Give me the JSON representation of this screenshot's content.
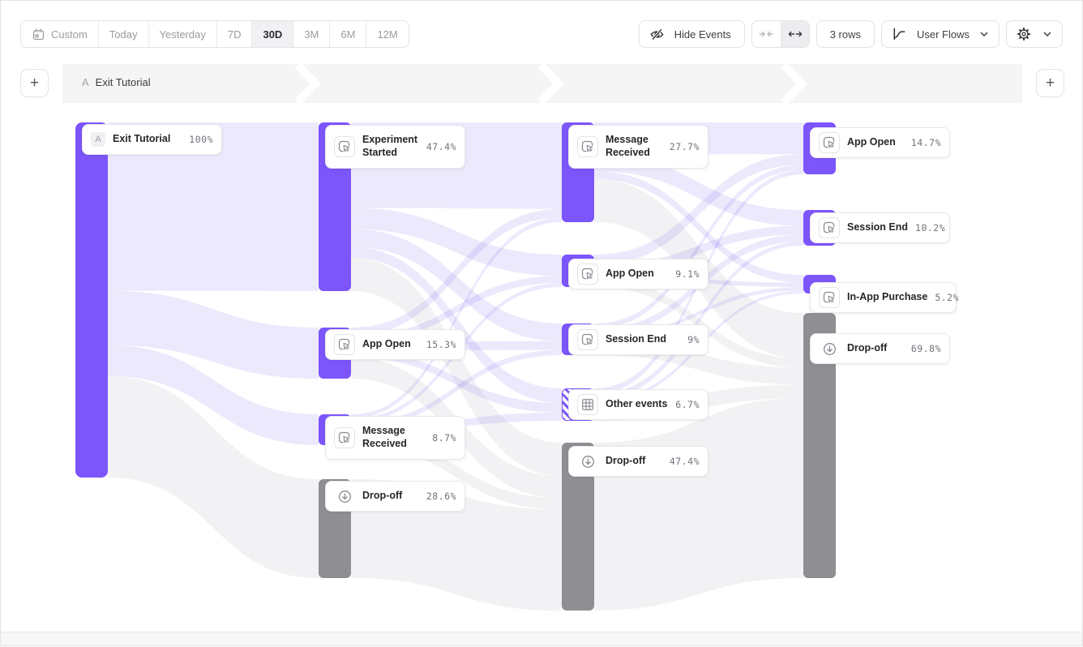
{
  "toolbar": {
    "date_ranges": [
      {
        "label": "Custom",
        "icon": "calendar-icon",
        "active": false
      },
      {
        "label": "Today",
        "active": false
      },
      {
        "label": "Yesterday",
        "active": false
      },
      {
        "label": "7D",
        "active": false
      },
      {
        "label": "30D",
        "active": true
      },
      {
        "label": "3M",
        "active": false
      },
      {
        "label": "6M",
        "active": false
      },
      {
        "label": "12M",
        "active": false
      }
    ],
    "hide_events_label": "Hide Events",
    "rows_label": "3 rows",
    "view_selector_label": "User Flows"
  },
  "flow_header": {
    "step_letter": "A",
    "step_label": "Exit Tutorial"
  },
  "colors": {
    "event_bar": "#7C55FB",
    "dropoff_bar": "#8E8E93",
    "flow": "#ECE9FC",
    "flow_dropoff": "#F2F2F5"
  },
  "chart_data": {
    "type": "sankey",
    "unit": "percent of users",
    "link_values_estimated": true,
    "columns": [
      {
        "step": 1,
        "nodes": [
          {
            "id": "exit-tutorial",
            "label": "Exit Tutorial",
            "pct": "100%",
            "value": 100,
            "kind": "start",
            "badge": "A"
          }
        ]
      },
      {
        "step": 2,
        "nodes": [
          {
            "id": "experiment-started",
            "label": "Experiment Started",
            "pct": "47.4%",
            "value": 47.4,
            "kind": "event"
          },
          {
            "id": "app-open-2",
            "label": "App Open",
            "pct": "15.3%",
            "value": 15.3,
            "kind": "event"
          },
          {
            "id": "message-received-2",
            "label": "Message Received",
            "pct": "8.7%",
            "value": 8.7,
            "kind": "event"
          },
          {
            "id": "drop-off-2",
            "label": "Drop-off",
            "pct": "28.6%",
            "value": 28.6,
            "kind": "dropoff"
          }
        ]
      },
      {
        "step": 3,
        "nodes": [
          {
            "id": "message-received-3",
            "label": "Message Received",
            "pct": "27.7%",
            "value": 27.7,
            "kind": "event"
          },
          {
            "id": "app-open-3",
            "label": "App Open",
            "pct": "9.1%",
            "value": 9.1,
            "kind": "event"
          },
          {
            "id": "session-end-3",
            "label": "Session End",
            "pct": "9%",
            "value": 9,
            "kind": "event"
          },
          {
            "id": "other-events",
            "label": "Other events",
            "pct": "6.7%",
            "value": 6.7,
            "kind": "other"
          },
          {
            "id": "drop-off-3",
            "label": "Drop-off",
            "pct": "47.4%",
            "value": 47.4,
            "kind": "dropoff"
          }
        ]
      },
      {
        "step": 4,
        "nodes": [
          {
            "id": "app-open-4",
            "label": "App Open",
            "pct": "14.7%",
            "value": 14.7,
            "kind": "event"
          },
          {
            "id": "session-end-4",
            "label": "Session End",
            "pct": "10.2%",
            "value": 10.2,
            "kind": "event"
          },
          {
            "id": "in-app-purchase",
            "label": "In-App Purchase",
            "pct": "5.2%",
            "value": 5.2,
            "kind": "event"
          },
          {
            "id": "drop-off-4",
            "label": "Drop-off",
            "pct": "69.8%",
            "value": 69.8,
            "kind": "dropoff"
          }
        ]
      }
    ],
    "links": [
      {
        "source": "exit-tutorial",
        "target": "experiment-started",
        "value": 47.4
      },
      {
        "source": "exit-tutorial",
        "target": "app-open-2",
        "value": 15.3
      },
      {
        "source": "exit-tutorial",
        "target": "message-received-2",
        "value": 8.7
      },
      {
        "source": "exit-tutorial",
        "target": "drop-off-2",
        "value": 28.6
      },
      {
        "source": "experiment-started",
        "target": "message-received-3",
        "value": 24.0
      },
      {
        "source": "experiment-started",
        "target": "app-open-3",
        "value": 6.0
      },
      {
        "source": "experiment-started",
        "target": "session-end-3",
        "value": 5.0
      },
      {
        "source": "experiment-started",
        "target": "other-events",
        "value": 3.0
      },
      {
        "source": "experiment-started",
        "target": "drop-off-3",
        "value": 9.4
      },
      {
        "source": "app-open-2",
        "target": "message-received-3",
        "value": 2.5
      },
      {
        "source": "app-open-2",
        "target": "app-open-3",
        "value": 2.0
      },
      {
        "source": "app-open-2",
        "target": "session-end-3",
        "value": 2.5
      },
      {
        "source": "app-open-2",
        "target": "other-events",
        "value": 2.0
      },
      {
        "source": "app-open-2",
        "target": "drop-off-3",
        "value": 6.3
      },
      {
        "source": "message-received-2",
        "target": "message-received-3",
        "value": 1.2
      },
      {
        "source": "message-received-2",
        "target": "app-open-3",
        "value": 1.1
      },
      {
        "source": "message-received-2",
        "target": "session-end-3",
        "value": 1.5
      },
      {
        "source": "message-received-2",
        "target": "other-events",
        "value": 1.7
      },
      {
        "source": "message-received-2",
        "target": "drop-off-3",
        "value": 3.2
      },
      {
        "source": "drop-off-2",
        "target": "drop-off-3",
        "value": 28.6
      },
      {
        "source": "message-received-3",
        "target": "app-open-4",
        "value": 9.0
      },
      {
        "source": "message-received-3",
        "target": "session-end-4",
        "value": 4.5
      },
      {
        "source": "message-received-3",
        "target": "in-app-purchase",
        "value": 2.2
      },
      {
        "source": "message-received-3",
        "target": "drop-off-4",
        "value": 12.0
      },
      {
        "source": "app-open-3",
        "target": "app-open-4",
        "value": 3.0
      },
      {
        "source": "app-open-3",
        "target": "session-end-4",
        "value": 2.5
      },
      {
        "source": "app-open-3",
        "target": "in-app-purchase",
        "value": 1.2
      },
      {
        "source": "app-open-3",
        "target": "drop-off-4",
        "value": 2.4
      },
      {
        "source": "session-end-3",
        "target": "app-open-4",
        "value": 1.5
      },
      {
        "source": "session-end-3",
        "target": "session-end-4",
        "value": 2.0
      },
      {
        "source": "session-end-3",
        "target": "in-app-purchase",
        "value": 1.0
      },
      {
        "source": "session-end-3",
        "target": "drop-off-4",
        "value": 4.5
      },
      {
        "source": "other-events",
        "target": "app-open-4",
        "value": 1.2
      },
      {
        "source": "other-events",
        "target": "session-end-4",
        "value": 1.2
      },
      {
        "source": "other-events",
        "target": "in-app-purchase",
        "value": 0.8
      },
      {
        "source": "other-events",
        "target": "drop-off-4",
        "value": 3.5
      },
      {
        "source": "drop-off-3",
        "target": "drop-off-4",
        "value": 47.4
      }
    ]
  }
}
